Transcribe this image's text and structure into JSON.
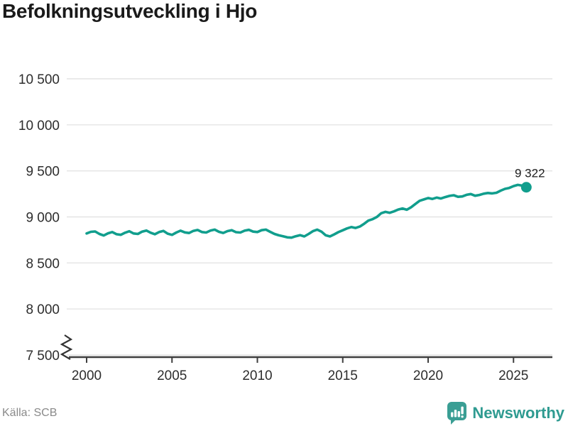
{
  "title": "Befolkningsutveckling i Hjo",
  "source": "Källa: SCB",
  "brand": {
    "name": "Newsworthy",
    "color": "#3a9e94"
  },
  "chart_data": {
    "type": "line",
    "title": "Befolkningsutveckling i Hjo",
    "xlabel": "",
    "ylabel": "",
    "grid": true,
    "axis_break": true,
    "line_color": "#119e8d",
    "grid_color": "#e4e4e4",
    "axis_color": "#3f3f3f",
    "xlim": [
      1998.85,
      2027.3
    ],
    "ylim": [
      7500,
      10500
    ],
    "y_ticks": [
      7500,
      8000,
      8500,
      9000,
      9500,
      10000,
      10500
    ],
    "y_tick_labels": [
      "7 500",
      "8 000",
      "8 500",
      "9 000",
      "9 500",
      "10 000",
      "10 500"
    ],
    "x_ticks": [
      2000,
      2005,
      2010,
      2015,
      2020,
      2025
    ],
    "x_tick_labels": [
      "2000",
      "2005",
      "2010",
      "2015",
      "2020",
      "2025"
    ],
    "end_label": "9 322",
    "end_value": 9322,
    "series": [
      {
        "name": "Befolkning i Hjo",
        "x_start": 2000.0,
        "x_step": 0.25,
        "values": [
          8820,
          8838,
          8842,
          8815,
          8798,
          8822,
          8836,
          8812,
          8806,
          8828,
          8844,
          8820,
          8815,
          8840,
          8852,
          8828,
          8812,
          8836,
          8848,
          8818,
          8805,
          8830,
          8850,
          8832,
          8825,
          8848,
          8858,
          8836,
          8830,
          8852,
          8862,
          8838,
          8826,
          8846,
          8856,
          8834,
          8830,
          8850,
          8860,
          8840,
          8836,
          8856,
          8862,
          8838,
          8815,
          8800,
          8790,
          8778,
          8775,
          8790,
          8802,
          8788,
          8815,
          8845,
          8862,
          8840,
          8800,
          8788,
          8810,
          8835,
          8855,
          8875,
          8890,
          8880,
          8895,
          8925,
          8960,
          8975,
          9000,
          9040,
          9055,
          9045,
          9060,
          9080,
          9092,
          9078,
          9105,
          9140,
          9175,
          9190,
          9205,
          9195,
          9210,
          9200,
          9215,
          9228,
          9235,
          9218,
          9222,
          9240,
          9248,
          9230,
          9238,
          9252,
          9260,
          9255,
          9262,
          9285,
          9305,
          9315,
          9335,
          9348,
          9340,
          9322
        ]
      }
    ]
  }
}
